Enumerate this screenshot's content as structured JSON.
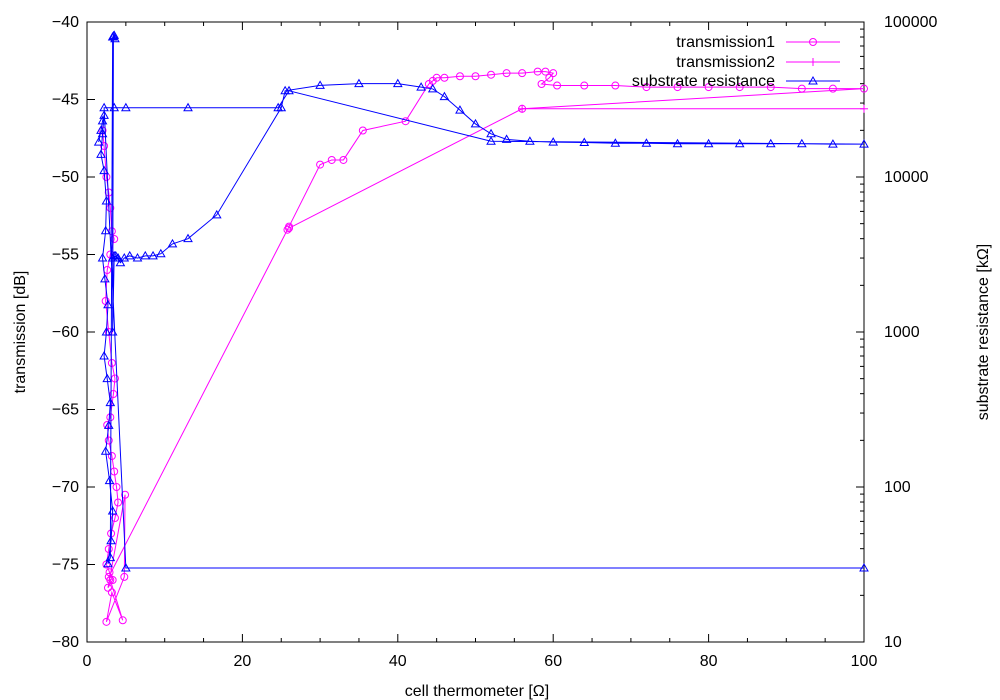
{
  "chart_data": {
    "type": "line",
    "xlabel": "cell thermometer [Ω]",
    "ylabel_left": "transmission [dB]",
    "ylabel_right": "substrate resistance [kΩ]",
    "xlim": [
      0,
      100
    ],
    "ylim_left": [
      -80,
      -40
    ],
    "ylim_right": [
      10,
      100000
    ],
    "y_right_scale": "log",
    "x_ticks": [
      "0",
      "20",
      "40",
      "60",
      "80",
      "100"
    ],
    "y_left_ticks": [
      "-40",
      "-45",
      "-50",
      "-55",
      "-60",
      "-65",
      "-70",
      "-75",
      "-80"
    ],
    "y_right_ticks": [
      "10",
      "100",
      "1000",
      "10000",
      "100000"
    ],
    "grid": false,
    "legend_position": "top-right",
    "colors": {
      "transmission1": "#ff00ff",
      "transmission2": "#ff00ff",
      "substrate": "#0000ff"
    },
    "series": [
      {
        "name": "transmission1",
        "axis": "left",
        "marker": "circle",
        "x": [
          2.0,
          2.2,
          2.5,
          2.8,
          3.0,
          3.2,
          3.5,
          3.0,
          2.6,
          2.4,
          2.8,
          3.2,
          3.6,
          3.4,
          3.0,
          2.6,
          2.8,
          3.2,
          3.5,
          3.8,
          4.0,
          3.6,
          3.1,
          2.8,
          2.5,
          2.9,
          3.3,
          2.7,
          4.9,
          4.8,
          2.5,
          3.2,
          4.6,
          3.0,
          2.8,
          26.0,
          25.8,
          30.0,
          31.5,
          33.0,
          35.5,
          41.0,
          44.0,
          44.5,
          45.0,
          46.0,
          48.0,
          50.0,
          52.0,
          54.0,
          56.0,
          58.0,
          59.0,
          60.0,
          59.5,
          58.5,
          60.5,
          64.0,
          68.0,
          72.0,
          76.0,
          80.0,
          84.0,
          88.0,
          92.0,
          96.0,
          100.0,
          56.0,
          26.0
        ],
        "y": [
          -47,
          -48,
          -50,
          -51,
          -52,
          -53.5,
          -54,
          -55,
          -56,
          -58,
          -60,
          -62,
          -63,
          -64,
          -65.5,
          -66,
          -67,
          -68,
          -69,
          -70,
          -71,
          -72,
          -73,
          -74,
          -75,
          -75.5,
          -76,
          -76.5,
          -70.5,
          -75.8,
          -78.7,
          -76.8,
          -78.6,
          -76,
          -75.8,
          -53.2,
          -53.4,
          -49.2,
          -48.9,
          -48.9,
          -47.0,
          -46.4,
          -44.0,
          -43.8,
          -43.6,
          -43.6,
          -43.5,
          -43.5,
          -43.4,
          -43.3,
          -43.3,
          -43.2,
          -43.2,
          -43.3,
          -43.6,
          -44.0,
          -44.1,
          -44.1,
          -44.1,
          -44.2,
          -44.2,
          -44.2,
          -44.2,
          -44.2,
          -44.3,
          -44.3,
          -44.3,
          -45.6,
          -53.3
        ]
      },
      {
        "name": "transmission2",
        "axis": "left",
        "marker": "plus",
        "x": [
          56.0,
          100.0
        ],
        "y": [
          -45.6,
          -45.6
        ]
      },
      {
        "name": "substrate resistance",
        "axis": "right",
        "marker": "triangle",
        "x": [
          1.5,
          1.8,
          2.0,
          2.2,
          2.0,
          1.8,
          2.2,
          2.5,
          2.4,
          2.0,
          2.3,
          2.7,
          2.5,
          2.2,
          2.6,
          3.0,
          2.8,
          2.4,
          2.9,
          3.3,
          3.1,
          2.7,
          3.0,
          3.3,
          3.5,
          3.6,
          3.4,
          3.3,
          3.5,
          4.0,
          3.3,
          3.7,
          4.3,
          4.8,
          5.5,
          6.5,
          7.5,
          8.5,
          9.5,
          11.0,
          13.0,
          16.7,
          25.0,
          25.5,
          30.0,
          35.0,
          40.0,
          43.0,
          44.5,
          46.0,
          48.0,
          50.0,
          52.0,
          54.0,
          57.0,
          60.0,
          64.0,
          68.0,
          72.0,
          76.0,
          80.0,
          84.0,
          88.0,
          92.0,
          96.0,
          100.0,
          52.0,
          26.0,
          24.6,
          13.0,
          5.0,
          3.5,
          2.2,
          5.0,
          100.0
        ],
        "y": [
          16800,
          20000,
          23000,
          25000,
          19000,
          14000,
          11000,
          7000,
          4500,
          3000,
          2200,
          1500,
          1000,
          700,
          500,
          350,
          250,
          170,
          110,
          70,
          45,
          32,
          35,
          80000,
          82000,
          78000,
          81000,
          1000,
          3100,
          3000,
          3000,
          3100,
          2800,
          3000,
          3100,
          3000,
          3100,
          3100,
          3200,
          3700,
          4000,
          5700,
          28000,
          36000,
          39000,
          40000,
          40000,
          38000,
          37000,
          33000,
          27000,
          22000,
          19000,
          17500,
          17000,
          16800,
          16700,
          16500,
          16500,
          16400,
          16400,
          16400,
          16400,
          16400,
          16300,
          16300,
          17000,
          36000,
          28000,
          28000,
          28000,
          28000,
          28000,
          30,
          30
        ]
      }
    ]
  }
}
